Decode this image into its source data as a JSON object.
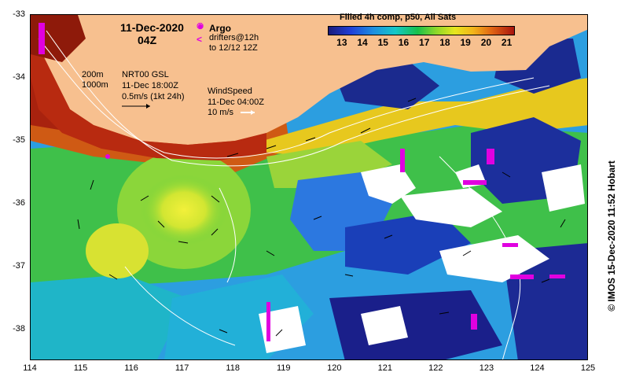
{
  "map": {
    "date_line": "11-Dec-2020",
    "time_line": "04Z",
    "argo_label": "Argo",
    "drifters_label_1": "drifters@12h",
    "drifters_label_2": "to 12/12 12Z",
    "argo_symbol": "❂",
    "drifter_symbol": "<",
    "isobath_1": "200m",
    "isobath_2": "1000m",
    "current_line_1": "NRT00 GSL",
    "current_line_2": "11-Dec 18:00Z",
    "current_line_3": "0.5m/s (1kt 24h)",
    "wind_line_1": "WindSpeed",
    "wind_line_2": "11-Dec 04:00Z",
    "wind_line_3": "10 m/s",
    "colorbar_title": "Filled 4h comp, p50, All Sats",
    "colorbar_ticks": [
      "13",
      "14",
      "15",
      "16",
      "17",
      "18",
      "19",
      "20",
      "21"
    ],
    "x_ticks": [
      "114",
      "115",
      "116",
      "117",
      "118",
      "119",
      "120",
      "121",
      "122",
      "123",
      "124",
      "125"
    ],
    "y_ticks": [
      "-33",
      "-34",
      "-35",
      "-36",
      "-37",
      "-38"
    ],
    "credit": "© IMOS 15-Dec-2020 11:52 Hobart",
    "land_color": "#f7c08f",
    "extent": {
      "lon_min": 114,
      "lon_max": 125,
      "lat_max": -33,
      "lat_min": -38.5
    }
  }
}
